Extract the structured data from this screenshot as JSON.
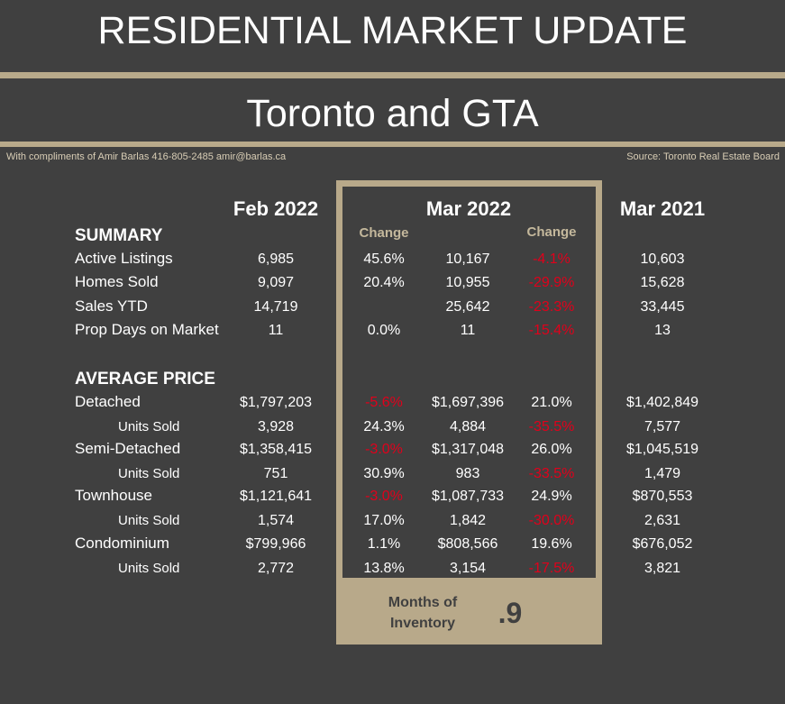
{
  "header": {
    "title": "RESIDENTIAL MARKET UPDATE",
    "subtitle": "Toronto and GTA",
    "compliments": "With compliments of Amir Barlas 416-805-2485 amir@barlas.ca",
    "source": "Source: Toronto Real Estate Board"
  },
  "columns": {
    "feb": "Feb 2022",
    "mar": "Mar 2022",
    "mar_prev": "Mar 2021",
    "change_label": "Change"
  },
  "colors": {
    "background": "#404040",
    "accent": "#b8a98a",
    "negative": "#e0001b",
    "text": "#ffffff"
  },
  "summary": {
    "heading": "SUMMARY",
    "rows": [
      {
        "label": "Active Listings",
        "feb": "6,985",
        "chg1": "45.6%",
        "mar": "10,167",
        "chg2": "-4.1%",
        "mar_prev": "10,603"
      },
      {
        "label": "Homes Sold",
        "feb": "9,097",
        "chg1": "20.4%",
        "mar": "10,955",
        "chg2": "-29.9%",
        "mar_prev": "15,628"
      },
      {
        "label": "Sales YTD",
        "feb": "14,719",
        "chg1": "",
        "mar": "25,642",
        "chg2": "-23.3%",
        "mar_prev": "33,445"
      },
      {
        "label": "Prop Days on Market",
        "feb": "11",
        "chg1": "0.0%",
        "mar": "11",
        "chg2": "-15.4%",
        "mar_prev": "13"
      }
    ]
  },
  "average_price": {
    "heading": "AVERAGE PRICE",
    "rows": [
      {
        "label": "Detached",
        "feb": "$1,797,203",
        "chg1": "-5.6%",
        "mar": "$1,697,396",
        "chg2": "21.0%",
        "mar_prev": "$1,402,849"
      },
      {
        "label": "Units Sold",
        "feb": "3,928",
        "chg1": "24.3%",
        "mar": "4,884",
        "chg2": "-35.5%",
        "mar_prev": "7,577"
      },
      {
        "label": "Semi-Detached",
        "feb": "$1,358,415",
        "chg1": "-3.0%",
        "mar": "$1,317,048",
        "chg2": "26.0%",
        "mar_prev": "$1,045,519"
      },
      {
        "label": "Units Sold",
        "feb": "751",
        "chg1": "30.9%",
        "mar": "983",
        "chg2": "-33.5%",
        "mar_prev": "1,479"
      },
      {
        "label": "Townhouse",
        "feb": "$1,121,641",
        "chg1": "-3.0%",
        "mar": "$1,087,733",
        "chg2": "24.9%",
        "mar_prev": "$870,553"
      },
      {
        "label": "Units Sold",
        "feb": "1,574",
        "chg1": "17.0%",
        "mar": "1,842",
        "chg2": "-30.0%",
        "mar_prev": "2,631"
      },
      {
        "label": "Condominium",
        "feb": "$799,966",
        "chg1": "1.1%",
        "mar": "$808,566",
        "chg2": "19.6%",
        "mar_prev": "$676,052"
      },
      {
        "label": "Units Sold",
        "feb": "2,772",
        "chg1": "13.8%",
        "mar": "3,154",
        "chg2": "-17.5%",
        "mar_prev": "3,821"
      }
    ]
  },
  "months_of_inventory": {
    "label_line1": "Months of",
    "label_line2": "Inventory",
    "value": ".9"
  }
}
